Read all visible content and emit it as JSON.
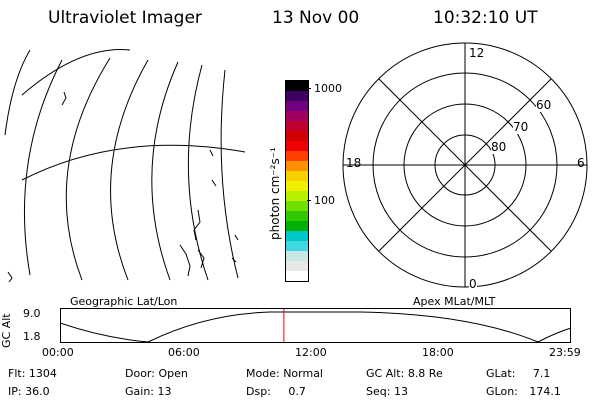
{
  "header": {
    "title": "Ultraviolet Imager",
    "date": "13 Nov 00",
    "time": "10:32:10 UT"
  },
  "colorbar": {
    "unit_label": "photon cm⁻²s⁻¹",
    "tick_1000": "1000",
    "tick_100": "100",
    "colors": [
      "#ffffff",
      "#e8e8e8",
      "#c8e8e8",
      "#40d8e0",
      "#00c8c8",
      "#00b000",
      "#30c800",
      "#70e000",
      "#b8f000",
      "#f0f000",
      "#f8d000",
      "#ff9000",
      "#ff4000",
      "#f00000",
      "#d00000",
      "#c00030",
      "#a00060",
      "#700080",
      "#400060",
      "#000000"
    ]
  },
  "map_left": {
    "caption": "Geographic Lat/Lon"
  },
  "map_right": {
    "caption": "Apex MLat/MLT",
    "mlt_labels": [
      "12",
      "18",
      "6",
      "0"
    ],
    "lat_labels": [
      "60",
      "70",
      "80"
    ]
  },
  "timeline": {
    "axis_label": "GC Alt",
    "y_ticks": [
      "9.0",
      "1.8"
    ],
    "x_ticks": [
      "00:00",
      "06:00",
      "12:00",
      "18:00",
      "23:59"
    ],
    "marker_fraction": 0.438,
    "marker_color": "#ff0000"
  },
  "status": {
    "flt_label": "Flt:",
    "flt_value": "1304",
    "ip_label": "IP:",
    "ip_value": "36.0",
    "door_label": "Door:",
    "door_value": "Open",
    "gain_label": "Gain:",
    "gain_value": "13",
    "mode_label": "Mode:",
    "mode_value": "Normal",
    "dsp_label": "Dsp:",
    "dsp_value": "0.7",
    "gcalt_label": "GC Alt:",
    "gcalt_value": "8.8 Re",
    "seq_label": "Seq:",
    "seq_value": "13",
    "glat_label": "GLat:",
    "glat_value": "7.1",
    "glon_label": "GLon:",
    "glon_value": "174.1"
  }
}
